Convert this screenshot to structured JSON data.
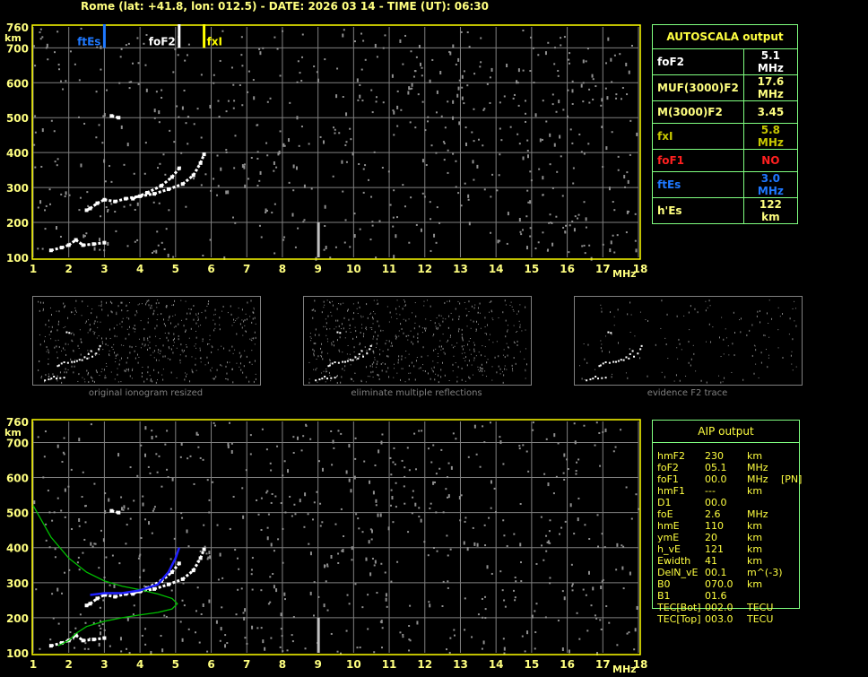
{
  "header": {
    "title": "Rome (lat: +41.8, lon: 012.5) - DATE: 2026 03 14 - TIME (UT): 06:30"
  },
  "colors": {
    "axis": "#ffff00",
    "grid": "#808080",
    "label": "#ffff80",
    "ftEs": "#1e78ff",
    "foF2": "#ffffff",
    "fxI": "#ffff00",
    "foF1": "#ff2020",
    "border": "#80ff80",
    "profile": "#00c000",
    "recon_trace": "#2020ff"
  },
  "ionogram": {
    "y_unit": "km",
    "x_unit": "MHz",
    "y_ticks": [
      760,
      700,
      600,
      500,
      400,
      300,
      200,
      100
    ],
    "x_ticks": [
      "1",
      "2",
      "3",
      "4",
      "5",
      "6",
      "7",
      "8",
      "9",
      "10",
      "11",
      "12",
      "13",
      "14",
      "15",
      "16",
      "17",
      "18"
    ],
    "markers": [
      {
        "label": "ftEs",
        "freq": 3.0,
        "color": "#1e78ff"
      },
      {
        "label": "foF2",
        "freq": 5.1,
        "color": "#ffffff"
      },
      {
        "label": "fxI",
        "freq": 5.8,
        "color": "#ffff00"
      }
    ]
  },
  "chart_data": [
    {
      "type": "scatter",
      "xlabel": "MHz",
      "ylabel": "km",
      "xlim": [
        1,
        18
      ],
      "ylim": [
        100,
        760
      ],
      "grid": true,
      "series": [
        {
          "points": [
            [
              2.5,
              235
            ],
            [
              2.6,
              240
            ],
            [
              2.8,
              255
            ],
            [
              3.0,
              265
            ],
            [
              3.3,
              260
            ],
            [
              3.6,
              268
            ],
            [
              4.0,
              275
            ],
            [
              4.4,
              282
            ],
            [
              4.8,
              295
            ],
            [
              5.2,
              310
            ],
            [
              5.5,
              335
            ],
            [
              5.7,
              370
            ],
            [
              5.8,
              395
            ]
          ]
        },
        {
          "points": [
            [
              3.8,
              268
            ],
            [
              4.2,
              285
            ],
            [
              4.6,
              305
            ],
            [
              4.9,
              330
            ],
            [
              5.1,
              355
            ]
          ]
        },
        {
          "points": [
            [
              1.5,
              120
            ],
            [
              1.8,
              128
            ],
            [
              2.0,
              135
            ],
            [
              2.2,
              150
            ],
            [
              2.4,
              135
            ],
            [
              2.7,
              138
            ],
            [
              3.0,
              142
            ]
          ]
        },
        {
          "points": [
            [
              3.2,
              505
            ],
            [
              3.4,
              500
            ]
          ]
        }
      ]
    },
    {
      "type": "line",
      "xlabel": "MHz",
      "ylabel": "km",
      "xlim": [
        1,
        18
      ],
      "ylim": [
        100,
        760
      ],
      "grid": true,
      "series": [
        {
          "points": [
            [
              1.0,
              520
            ],
            [
              1.5,
              430
            ],
            [
              2.0,
              370
            ],
            [
              2.5,
              330
            ],
            [
              3.0,
              305
            ],
            [
              3.5,
              290
            ],
            [
              4.0,
              280
            ],
            [
              4.5,
              268
            ],
            [
              4.9,
              255
            ],
            [
              5.05,
              240
            ],
            [
              4.9,
              225
            ],
            [
              4.5,
              215
            ],
            [
              4.0,
              208
            ],
            [
              3.5,
              200
            ],
            [
              3.0,
              190
            ],
            [
              2.5,
              175
            ],
            [
              2.2,
              155
            ],
            [
              2.0,
              135
            ],
            [
              1.7,
              120
            ]
          ],
          "color": "#00c000"
        },
        {
          "points": [
            [
              2.6,
              265
            ],
            [
              3.0,
              270
            ],
            [
              3.5,
              270
            ],
            [
              4.0,
              278
            ],
            [
              4.5,
              295
            ],
            [
              4.8,
              330
            ],
            [
              5.0,
              370
            ],
            [
              5.1,
              400
            ]
          ],
          "color": "#2020ff"
        }
      ]
    }
  ],
  "thumbnails": [
    {
      "label": "original ionogram resized"
    },
    {
      "label": "eliminate multiple reflections"
    },
    {
      "label": "evidence F2 trace"
    }
  ],
  "autoscala": {
    "title": "AUTOSCALA output",
    "rows": [
      {
        "name": "foF2",
        "value": "5.1 MHz",
        "color": "#ffffff"
      },
      {
        "name": "MUF(3000)F2",
        "value": "17.6 MHz",
        "color": "#ffff80"
      },
      {
        "name": "M(3000)F2",
        "value": "3.45",
        "color": "#ffff80"
      },
      {
        "name": "fxI",
        "value": "5.8 MHz",
        "color": "#c8c800"
      },
      {
        "name": "foF1",
        "value": "NO",
        "color": "#ff2020"
      },
      {
        "name": "ftEs",
        "value": "3.0 MHz",
        "color": "#1e78ff"
      },
      {
        "name": "h'Es",
        "value": "122    km",
        "color": "#ffff80"
      }
    ]
  },
  "aip": {
    "title": "AIP output",
    "rows": [
      {
        "name": "hmF2",
        "value": "230",
        "unit": "km",
        "extra": ""
      },
      {
        "name": "foF2",
        "value": "05.1",
        "unit": "MHz",
        "extra": ""
      },
      {
        "name": "foF1",
        "value": "00.0",
        "unit": "MHz",
        "extra": "[PN]"
      },
      {
        "name": "hmF1",
        "value": "---",
        "unit": "km",
        "extra": ""
      },
      {
        "name": "D1",
        "value": "00.0",
        "unit": "",
        "extra": ""
      },
      {
        "name": "foE",
        "value": "2.6",
        "unit": "MHz",
        "extra": ""
      },
      {
        "name": "hmE",
        "value": "110",
        "unit": "km",
        "extra": ""
      },
      {
        "name": "ymE",
        "value": "20",
        "unit": "km",
        "extra": ""
      },
      {
        "name": "h_vE",
        "value": "121",
        "unit": "km",
        "extra": ""
      },
      {
        "name": "Ewidth",
        "value": "41",
        "unit": "km",
        "extra": ""
      },
      {
        "name": "DelN_vE",
        "value": "00.1",
        "unit": "m^(-3)",
        "extra": ""
      },
      {
        "name": "B0",
        "value": "070.0",
        "unit": "km",
        "extra": ""
      },
      {
        "name": "B1",
        "value": "01.6",
        "unit": "",
        "extra": ""
      },
      {
        "name": "TEC[Bot]",
        "value": "002.0",
        "unit": "TECU",
        "extra": ""
      },
      {
        "name": "TEC[Top]",
        "value": "003.0",
        "unit": "TECU",
        "extra": ""
      }
    ]
  }
}
